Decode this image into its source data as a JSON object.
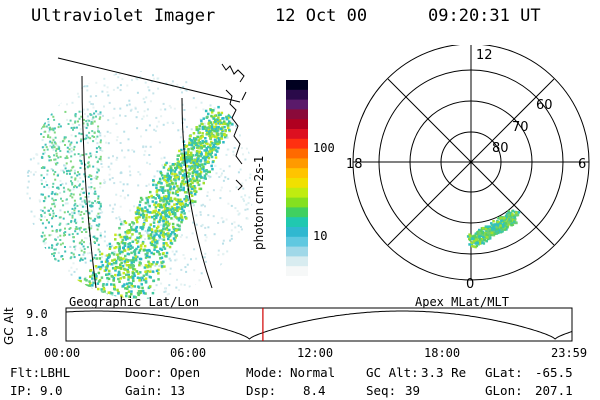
{
  "header": {
    "title": "Ultraviolet Imager",
    "date": "12 Oct 00",
    "time": "09:20:31 UT"
  },
  "geo_panel": {
    "caption": "Geographic Lat/Lon"
  },
  "apex_panel": {
    "caption": "Apex MLat/MLT",
    "mlt_labels": {
      "top": "12",
      "left": "18",
      "right": "6",
      "bottom": "0"
    },
    "lat_labels": [
      "60",
      "70",
      "80"
    ]
  },
  "colorbar": {
    "unit_label": "photon cm-2s-1",
    "tick_labels": [
      "100",
      "10"
    ],
    "colors": [
      "#000020",
      "#2a0a4a",
      "#5a1a6a",
      "#8a0a3a",
      "#b00020",
      "#dd1020",
      "#ff3010",
      "#ff6a00",
      "#ff9a00",
      "#ffc400",
      "#f0e000",
      "#c0ec10",
      "#84e020",
      "#40d060",
      "#20c8b0",
      "#30b8d0",
      "#60c8e0",
      "#a0d8e8",
      "#d8ecf0",
      "#f6f8f8"
    ]
  },
  "timeline": {
    "axis_label": "GC Alt",
    "y_ticks": [
      "9.0",
      "1.8"
    ],
    "x_ticks": [
      "00:00",
      "06:00",
      "12:00",
      "18:00",
      "23:59"
    ],
    "current_time_hours": 9.34,
    "marker_color": "#d00000"
  },
  "info": {
    "flt_label": "Flt:",
    "flt_value": "LBHL",
    "ip_label": "IP:",
    "ip_value": "9.0",
    "door_label": "Door:",
    "door_value": "Open",
    "gain_label": "Gain:",
    "gain_value": "13",
    "mode_label": "Mode:",
    "mode_value": "Normal",
    "dsp_label": "Dsp:",
    "dsp_value": "8.4",
    "gcalt_label": "GC Alt:",
    "gcalt_value": "3.3 Re",
    "seq_label": "Seq:",
    "seq_value": "39",
    "glat_label": "GLat:",
    "glat_value": "-65.5",
    "glon_label": "GLon:",
    "glon_value": "207.1"
  }
}
